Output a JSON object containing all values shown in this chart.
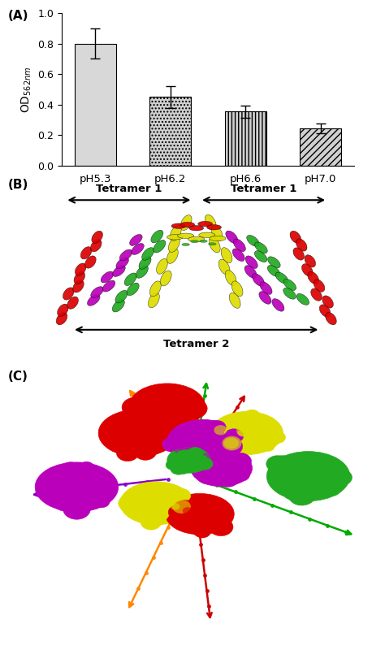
{
  "bar_values": [
    0.8,
    0.45,
    0.355,
    0.245
  ],
  "bar_errors": [
    0.1,
    0.07,
    0.04,
    0.03
  ],
  "bar_labels": [
    "pH5.3",
    "pH6.2",
    "pH6.6",
    "pH7.0"
  ],
  "ylabel": "OD$_{562nm}$",
  "ylim": [
    0,
    1.0
  ],
  "yticks": [
    0,
    0.2,
    0.4,
    0.6,
    0.8,
    1
  ],
  "panel_A_label": "(A)",
  "panel_B_label": "(B)",
  "panel_C_label": "(C)",
  "tetramer1_label": "Tetramer 1",
  "tetramer2_label": "Tetramer 2",
  "bg_color": "#ffffff",
  "bar_hatches": [
    "",
    "....",
    "||||",
    "////"
  ],
  "bar_facecolors": [
    "#d8d8d8",
    "#d0d0d0",
    "#d0d0d0",
    "#d0d0d0"
  ],
  "figsize": [
    4.74,
    8.0
  ],
  "dpi": 100,
  "protein_colors": {
    "red": "#dd0000",
    "purple": "#bb00bb",
    "green": "#22aa22",
    "yellow": "#dddd00"
  },
  "arrow_colors_C": {
    "orange": "#ff8800",
    "purple": "#8800cc",
    "green": "#00aa00",
    "red": "#cc0000"
  }
}
